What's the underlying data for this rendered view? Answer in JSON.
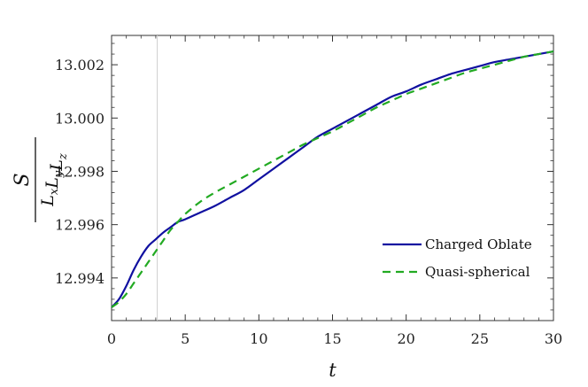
{
  "chart_data": {
    "type": "line",
    "title": "",
    "xlabel": "t",
    "ylabel": {
      "numerator": "S",
      "denominator": [
        {
          "base": "L",
          "sub": "x"
        },
        {
          "base": "L",
          "sub": "y"
        },
        {
          "base": "L",
          "sub": "z"
        }
      ]
    },
    "xlim": [
      0,
      30
    ],
    "ylim": [
      12.9924,
      13.0031
    ],
    "xticks": [
      0,
      5,
      10,
      15,
      20,
      25,
      30
    ],
    "xtick_labels": [
      "0",
      "5",
      "10",
      "15",
      "20",
      "25",
      "30"
    ],
    "yticks": [
      12.994,
      12.996,
      12.998,
      13.0,
      13.002
    ],
    "ytick_labels": [
      "12.994",
      "12.996",
      "12.998",
      "13.000",
      "13.002"
    ],
    "grid": false,
    "legend_position": "bottom-right",
    "reference_line_x": 3.1,
    "series": [
      {
        "name": "Charged Oblate",
        "color": "#1010a0",
        "dash": "solid",
        "x": [
          0,
          0.5,
          1,
          1.5,
          2,
          2.5,
          3,
          3.5,
          4,
          4.5,
          5,
          6,
          7,
          8,
          9,
          10,
          11,
          12,
          13,
          14,
          15,
          16,
          17,
          18,
          19,
          20,
          21,
          22,
          23,
          24,
          25,
          26,
          27,
          28,
          29,
          30
        ],
        "y": [
          12.9929,
          12.9932,
          12.9937,
          12.9943,
          12.9948,
          12.9952,
          12.99545,
          12.9957,
          12.9959,
          12.9961,
          12.9962,
          12.99645,
          12.9967,
          12.997,
          12.9973,
          12.9977,
          12.9981,
          12.9985,
          12.9989,
          12.9993,
          12.9996,
          12.9999,
          13.0002,
          13.0005,
          13.0008,
          13.001,
          13.00125,
          13.00145,
          13.00165,
          13.0018,
          13.00195,
          13.0021,
          13.0022,
          13.0023,
          13.0024,
          13.0025
        ]
      },
      {
        "name": "Quasi-spherical",
        "color": "#22aa22",
        "dash": "dashed",
        "x": [
          0,
          0.5,
          1,
          1.5,
          2,
          2.5,
          3,
          3.5,
          4,
          4.5,
          5,
          6,
          7,
          8,
          9,
          10,
          11,
          12,
          13,
          14,
          15,
          16,
          17,
          18,
          19,
          20,
          21,
          22,
          23,
          24,
          25,
          26,
          27,
          28,
          29,
          30
        ],
        "y": [
          12.9929,
          12.9931,
          12.9934,
          12.9938,
          12.9942,
          12.9946,
          12.995,
          12.9954,
          12.9958,
          12.9961,
          12.9964,
          12.99685,
          12.9972,
          12.9975,
          12.9978,
          12.9981,
          12.9984,
          12.9987,
          12.999,
          12.99925,
          12.9995,
          12.9998,
          13.0001,
          13.0004,
          13.00065,
          13.0009,
          13.0011,
          13.0013,
          13.0015,
          13.0017,
          13.00185,
          13.002,
          13.00215,
          13.0023,
          13.0024,
          13.0025
        ]
      }
    ]
  }
}
